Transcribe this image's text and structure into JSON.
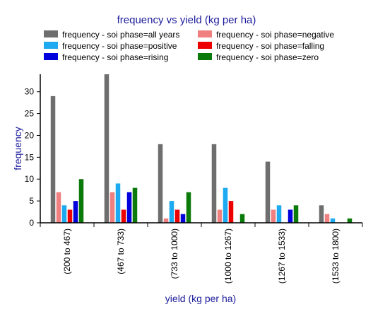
{
  "chart_data": {
    "type": "bar",
    "title": "frequency vs yield (kg per ha)",
    "xlabel": "yield (kg per ha)",
    "ylabel": "frequency",
    "ylim": [
      0,
      34
    ],
    "yticks": [
      0,
      5,
      10,
      15,
      20,
      25,
      30
    ],
    "grid": false,
    "legend_position": "top",
    "categories": [
      "(200 to 467)",
      "(467 to 733)",
      "(733 to 1000)",
      "(1000 to 1267)",
      "(1267 to 1533)",
      "(1533 to 1800)"
    ],
    "series": [
      {
        "name": "frequency - soi phase=all years",
        "color": "#6e6e6e",
        "values": [
          29,
          34,
          18,
          18,
          14,
          4
        ]
      },
      {
        "name": "frequency - soi phase=negative",
        "color": "#f08080",
        "values": [
          7,
          7,
          1,
          3,
          3,
          2
        ]
      },
      {
        "name": "frequency - soi phase=positive",
        "color": "#1eaaf0",
        "values": [
          4,
          9,
          5,
          8,
          4,
          1
        ]
      },
      {
        "name": "frequency - soi phase=falling",
        "color": "#ee0000",
        "values": [
          3,
          3,
          3,
          5,
          0,
          0
        ]
      },
      {
        "name": "frequency - soi phase=rising",
        "color": "#0000dd",
        "values": [
          5,
          7,
          2,
          0,
          3,
          0
        ]
      },
      {
        "name": "frequency - soi phase=zero",
        "color": "#0a7a0a",
        "values": [
          10,
          8,
          7,
          2,
          4,
          1
        ]
      }
    ]
  }
}
